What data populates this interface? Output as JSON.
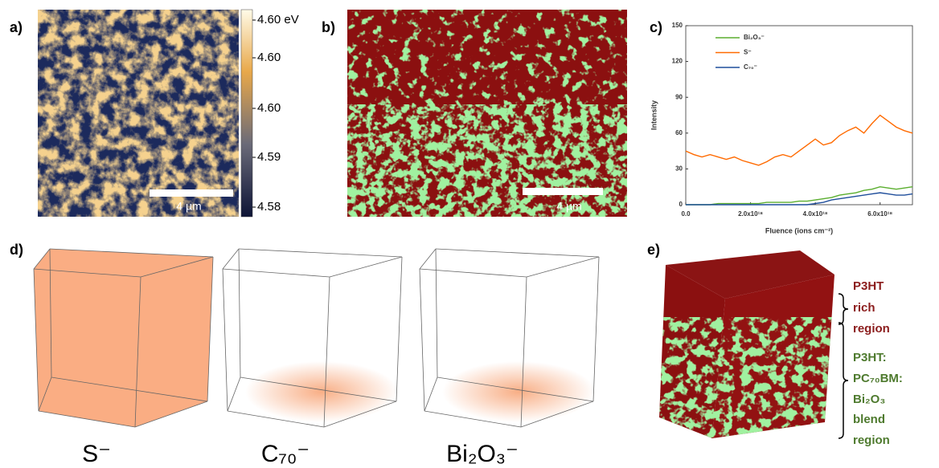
{
  "panel_labels": [
    "a)",
    "b)",
    "c)",
    "d)",
    "e)"
  ],
  "panel_a": {
    "colorbar_labels": [
      "4.60 eV",
      "4.60",
      "4.60",
      "4.59",
      "4.58"
    ],
    "scale_bar": "4 µm"
  },
  "panel_b": {
    "scale_bar": "4 µm"
  },
  "chart_data": {
    "type": "line",
    "xlabel": "Fluence (ions cm⁻²)",
    "ylabel": "Intensity",
    "x": [
      0,
      2.5e+17,
      5e+17,
      7.5e+17,
      1e+18,
      1.25e+18,
      1.5e+18,
      1.75e+18,
      2e+18,
      2.25e+18,
      2.5e+18,
      2.75e+18,
      3e+18,
      3.25e+18,
      3.5e+18,
      3.75e+18,
      4e+18,
      4.25e+18,
      4.5e+18,
      4.75e+18,
      5e+18,
      5.25e+18,
      5.5e+18,
      5.75e+18,
      6e+18,
      6.25e+18,
      6.5e+18,
      6.75e+18,
      7e+18
    ],
    "series": [
      {
        "name": "Bi₂O₃⁻",
        "color": "#5aae2e",
        "values": [
          0,
          0,
          0,
          0,
          1,
          1,
          1,
          1,
          1,
          1,
          2,
          2,
          2,
          2,
          3,
          3,
          4,
          5,
          6,
          8,
          9,
          10,
          12,
          13,
          15,
          14,
          13,
          14,
          15
        ]
      },
      {
        "name": "S⁻",
        "color": "#ff6a00",
        "values": [
          45,
          42,
          40,
          42,
          40,
          38,
          40,
          37,
          35,
          33,
          36,
          40,
          42,
          40,
          45,
          50,
          55,
          50,
          52,
          58,
          62,
          65,
          60,
          68,
          75,
          70,
          65,
          62,
          60
        ]
      },
      {
        "name": "C₇₀⁻",
        "color": "#1f4e9b",
        "values": [
          0,
          0,
          0,
          0,
          0,
          0,
          0,
          0,
          0,
          0,
          0,
          0,
          0,
          0,
          0,
          0,
          1,
          2,
          4,
          5,
          6,
          7,
          8,
          9,
          10,
          9,
          8,
          8,
          9
        ]
      }
    ],
    "xlim": [
      0,
      7e+18
    ],
    "ylim": [
      0,
      150
    ],
    "xticks": [
      {
        "value": 0,
        "label": "0.0"
      },
      {
        "value": 2e+18,
        "label": "2.0x10¹⁸"
      },
      {
        "value": 4e+18,
        "label": "4.0x10¹⁸"
      },
      {
        "value": 6e+18,
        "label": "6.0x10¹⁸"
      }
    ],
    "yticks": [
      0,
      30,
      60,
      90,
      120,
      150
    ]
  },
  "panel_d": {
    "cubes": [
      "S⁻",
      "C₇₀⁻",
      "Bi₂O₃⁻"
    ]
  },
  "panel_e": {
    "regions": [
      {
        "lines": [
          "P3HT",
          "rich",
          "region"
        ]
      },
      {
        "lines": [
          "P3HT:",
          "PC₇₀BM:",
          "Bi₂O₃",
          "blend",
          "region"
        ]
      }
    ]
  }
}
